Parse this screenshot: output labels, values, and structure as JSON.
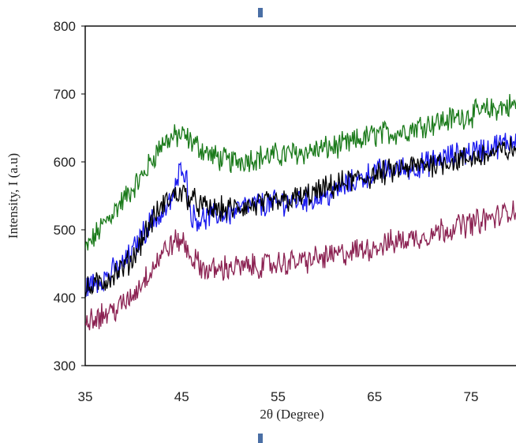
{
  "chart_data": {
    "type": "line",
    "title": "",
    "xlabel": "2θ (Degree)",
    "ylabel": "Intensity, I (a.u)",
    "xlim": [
      35,
      80
    ],
    "ylim": [
      300,
      800
    ],
    "x_ticks": [
      35,
      45,
      55,
      65,
      75
    ],
    "y_ticks": [
      300,
      400,
      500,
      600,
      700,
      800
    ],
    "x_tick_labels": [
      "35",
      "45",
      "55",
      "65",
      "75"
    ],
    "y_tick_labels": [
      "300",
      "400",
      "500",
      "600",
      "700",
      "800"
    ],
    "grid": false,
    "legend": "none",
    "series": [
      {
        "color": "#1a7a1a",
        "points": [
          [
            35,
            470
          ],
          [
            37,
            510
          ],
          [
            39,
            545
          ],
          [
            41,
            580
          ],
          [
            42,
            605
          ],
          [
            43,
            628
          ],
          [
            44,
            635
          ],
          [
            45,
            640
          ],
          [
            46,
            630
          ],
          [
            47,
            620
          ],
          [
            48,
            610
          ],
          [
            50,
            600
          ],
          [
            52,
            605
          ],
          [
            55,
            610
          ],
          [
            58,
            615
          ],
          [
            60,
            620
          ],
          [
            62,
            625
          ],
          [
            65,
            640
          ],
          [
            68,
            645
          ],
          [
            70,
            655
          ],
          [
            72,
            660
          ],
          [
            75,
            670
          ],
          [
            78,
            680
          ],
          [
            80,
            685
          ]
        ]
      },
      {
        "color": "#1a1aee",
        "points": [
          [
            35,
            415
          ],
          [
            37,
            430
          ],
          [
            39,
            450
          ],
          [
            40,
            470
          ],
          [
            41,
            495
          ],
          [
            42,
            515
          ],
          [
            43,
            520
          ],
          [
            44,
            545
          ],
          [
            44.5,
            565
          ],
          [
            45,
            600
          ],
          [
            45.5,
            575
          ],
          [
            46,
            520
          ],
          [
            47,
            515
          ],
          [
            48,
            520
          ],
          [
            50,
            525
          ],
          [
            52,
            535
          ],
          [
            55,
            540
          ],
          [
            58,
            545
          ],
          [
            60,
            550
          ],
          [
            62,
            565
          ],
          [
            65,
            585
          ],
          [
            68,
            590
          ],
          [
            70,
            595
          ],
          [
            72,
            605
          ],
          [
            75,
            615
          ],
          [
            78,
            625
          ],
          [
            80,
            635
          ]
        ]
      },
      {
        "color": "#000000",
        "points": [
          [
            35,
            410
          ],
          [
            37,
            425
          ],
          [
            39,
            445
          ],
          [
            40,
            460
          ],
          [
            41,
            490
          ],
          [
            42,
            515
          ],
          [
            43,
            535
          ],
          [
            44,
            550
          ],
          [
            45,
            555
          ],
          [
            46,
            545
          ],
          [
            47,
            535
          ],
          [
            48,
            530
          ],
          [
            50,
            530
          ],
          [
            52,
            535
          ],
          [
            55,
            540
          ],
          [
            58,
            550
          ],
          [
            60,
            560
          ],
          [
            62,
            570
          ],
          [
            65,
            580
          ],
          [
            68,
            590
          ],
          [
            70,
            595
          ],
          [
            72,
            600
          ],
          [
            75,
            605
          ],
          [
            78,
            615
          ],
          [
            80,
            620
          ]
        ]
      },
      {
        "color": "#8b2252",
        "points": [
          [
            35,
            370
          ],
          [
            37,
            375
          ],
          [
            39,
            390
          ],
          [
            40,
            405
          ],
          [
            41,
            425
          ],
          [
            42,
            445
          ],
          [
            43,
            465
          ],
          [
            44,
            480
          ],
          [
            45,
            485
          ],
          [
            46,
            460
          ],
          [
            47,
            445
          ],
          [
            48,
            440
          ],
          [
            50,
            445
          ],
          [
            52,
            445
          ],
          [
            55,
            450
          ],
          [
            58,
            455
          ],
          [
            60,
            460
          ],
          [
            62,
            465
          ],
          [
            65,
            475
          ],
          [
            68,
            485
          ],
          [
            70,
            490
          ],
          [
            72,
            500
          ],
          [
            75,
            510
          ],
          [
            78,
            520
          ],
          [
            80,
            535
          ]
        ]
      }
    ]
  },
  "colors": {
    "axis": "#000000",
    "marker": "#4a6fa5"
  }
}
